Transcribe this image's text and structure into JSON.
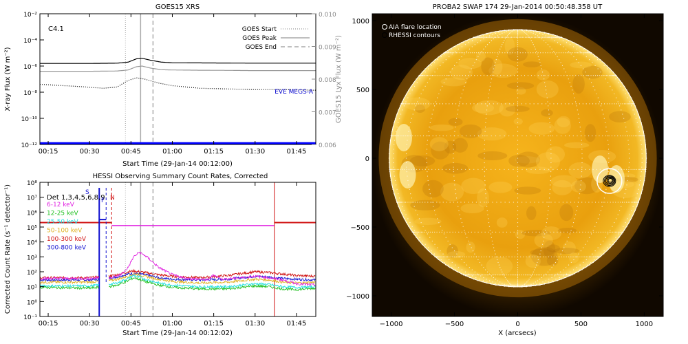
{
  "goes_panel": {
    "title": "GOES15 XRS",
    "class_label": "C4.1",
    "ylabel_left": "X-ray Flux (W m⁻²)",
    "ylabel_right": "GOES15 Lyx Flux (W m⁻²)",
    "xlabel": "Start Time (29-Jan-14 00:12:00)",
    "eve_label": "EVE MEGS-A",
    "legend": [
      {
        "label": "GOES Start",
        "style": "dotted",
        "color": "#aaaaaa"
      },
      {
        "label": "GOES Peak",
        "style": "solid",
        "color": "#aaaaaa"
      },
      {
        "label": "GOES End",
        "style": "dashed",
        "color": "#aaaaaa"
      }
    ]
  },
  "hessi_panel": {
    "title": "HESSI Observing Summary Count Rates, Corrected",
    "ylabel": "Corrected Count Rate (s⁻¹ detector⁻¹)",
    "xlabel": "Start Time (29-Jan-14 00:12:02)",
    "detectors": "Det 1,3,4,5,6,8,9",
    "flag_labels": [
      "S",
      "F",
      "N"
    ],
    "legend": [
      {
        "label": "6-12 keV",
        "color": "#e020e0"
      },
      {
        "label": "12-25 keV",
        "color": "#20c020"
      },
      {
        "label": "25-50 keV",
        "color": "#20e0e0"
      },
      {
        "label": "50-100 keV",
        "color": "#e0b020"
      },
      {
        "label": "100-300 keV",
        "color": "#d01010"
      },
      {
        "label": "300-800 keV",
        "color": "#1010d0"
      }
    ]
  },
  "sun_panel": {
    "title": "PROBA2 SWAP 174 29-Jan-2014 00:50:48.358 UT",
    "xlabel": "X (arcsecs)",
    "legend": [
      "AIA flare location",
      "RHESSI contours"
    ]
  },
  "chart_data": [
    {
      "type": "line",
      "title": "GOES15 XRS",
      "x_tick_labels": [
        "00:15",
        "00:30",
        "00:45",
        "01:00",
        "01:15",
        "01:30",
        "01:45"
      ],
      "x_tick_minutes": [
        15,
        30,
        45,
        60,
        75,
        90,
        105
      ],
      "xlim_minutes": [
        12,
        112
      ],
      "y_scale": "log",
      "ylim": [
        1e-12,
        0.01
      ],
      "y_tick_labels": [
        "10⁻¹²",
        "10⁻¹⁰",
        "10⁻⁸",
        "10⁻⁶",
        "10⁻⁴",
        "10⁻²"
      ],
      "y_tick_exponents": [
        -12,
        -10,
        -8,
        -6,
        -4,
        -2
      ],
      "y2lim": [
        0.006,
        0.01
      ],
      "y2_tick_labels": [
        "0.006",
        "0.007",
        "0.008",
        "0.009",
        "0.010"
      ],
      "vlines_minutes": {
        "start": 43,
        "peak": 48.5,
        "end": 53
      },
      "series": [
        {
          "color": "#000000",
          "style": "solid",
          "x": [
            12,
            30,
            40,
            44,
            47,
            49,
            52,
            56,
            60,
            70,
            80,
            90,
            100,
            112
          ],
          "log10y": [
            -5.8,
            -5.8,
            -5.78,
            -5.7,
            -5.45,
            -5.4,
            -5.55,
            -5.7,
            -5.75,
            -5.76,
            -5.77,
            -5.78,
            -5.78,
            -5.78
          ]
        },
        {
          "color": "#999999",
          "style": "solid",
          "x": [
            12,
            30,
            40,
            44,
            47,
            49,
            52,
            56,
            60,
            70,
            80,
            90,
            100,
            112
          ],
          "log10y": [
            -6.4,
            -6.4,
            -6.38,
            -6.3,
            -6.05,
            -6.0,
            -6.15,
            -6.28,
            -6.3,
            -6.32,
            -6.33,
            -6.35,
            -6.35,
            -6.35
          ]
        },
        {
          "color": "#000000",
          "style": "dotted",
          "x": [
            12,
            25,
            35,
            40,
            44,
            47,
            50,
            55,
            60,
            70,
            80,
            90,
            100,
            112
          ],
          "log10y": [
            -7.4,
            -7.55,
            -7.7,
            -7.6,
            -7.1,
            -6.9,
            -7.0,
            -7.3,
            -7.5,
            -7.7,
            -7.75,
            -7.8,
            -7.8,
            -7.85
          ]
        },
        {
          "color": "#0000ff",
          "style": "solid",
          "x": [
            12,
            112
          ],
          "log10y": [
            -11.9,
            -11.9
          ]
        }
      ]
    },
    {
      "type": "line",
      "title": "HESSI Observing Summary Count Rates, Corrected",
      "x_tick_labels": [
        "00:15",
        "00:30",
        "00:45",
        "01:00",
        "01:15",
        "01:30",
        "01:45"
      ],
      "x_tick_minutes": [
        15,
        30,
        45,
        60,
        75,
        90,
        105
      ],
      "xlim_minutes": [
        12,
        112
      ],
      "y_scale": "log",
      "ylim": [
        0.1,
        100000000.0
      ],
      "y_tick_labels": [
        "10⁻¹",
        "10⁰",
        "10¹",
        "10²",
        "10³",
        "10⁴",
        "10⁵",
        "10⁶",
        "10⁷",
        "10⁸"
      ],
      "y_tick_exponents": [
        -1,
        0,
        1,
        2,
        3,
        4,
        5,
        6,
        7,
        8
      ],
      "vlines_minutes": {
        "start": 43,
        "peak": 48.5,
        "end": 53
      },
      "series": [
        {
          "name": "6-12 keV",
          "color": "#e020e0",
          "x": [
            12,
            30,
            33,
            37,
            40,
            42,
            44,
            46,
            48,
            50,
            52,
            55,
            58,
            60,
            65,
            70,
            73,
            75,
            78,
            85,
            90,
            95,
            100,
            105,
            112
          ],
          "log10y": [
            1.55,
            1.55,
            1.6,
            1.6,
            1.7,
            1.9,
            2.3,
            3.0,
            3.3,
            3.1,
            2.8,
            2.3,
            2.0,
            1.8,
            1.55,
            1.5,
            1.45,
            1.8,
            1.5,
            1.6,
            1.7,
            1.6,
            1.45,
            1.2,
            1.1
          ]
        },
        {
          "name": "12-25 keV",
          "color": "#20c020",
          "x": [
            12,
            30,
            33,
            37,
            40,
            44,
            46,
            48,
            50,
            55,
            60,
            70,
            80,
            90,
            95,
            100,
            105,
            112
          ],
          "log10y": [
            0.95,
            0.9,
            0.95,
            1.0,
            1.1,
            1.4,
            1.6,
            1.5,
            1.35,
            1.1,
            0.95,
            0.85,
            0.85,
            1.05,
            1.0,
            0.85,
            0.8,
            0.9
          ]
        },
        {
          "name": "25-50 keV",
          "color": "#20e0e0",
          "x": [
            12,
            30,
            33,
            37,
            40,
            44,
            46,
            48,
            50,
            55,
            60,
            70,
            80,
            90,
            95,
            100,
            105,
            112
          ],
          "log10y": [
            1.05,
            1.05,
            1.1,
            1.15,
            1.25,
            1.55,
            1.75,
            1.65,
            1.5,
            1.25,
            1.1,
            1.0,
            1.0,
            1.2,
            1.15,
            1.0,
            0.95,
            1.0
          ]
        },
        {
          "name": "50-100 keV",
          "color": "#e0b020",
          "x": [
            12,
            30,
            33,
            37,
            40,
            44,
            46,
            48,
            50,
            55,
            60,
            70,
            80,
            90,
            95,
            100,
            105,
            112
          ],
          "log10y": [
            1.3,
            1.3,
            1.35,
            1.4,
            1.5,
            1.7,
            1.85,
            1.8,
            1.7,
            1.5,
            1.35,
            1.25,
            1.3,
            1.5,
            1.45,
            1.3,
            1.25,
            1.3
          ]
        },
        {
          "name": "100-300 keV",
          "color": "#d01010",
          "x": [
            12,
            30,
            33,
            37,
            40,
            44,
            46,
            48,
            50,
            55,
            60,
            70,
            80,
            90,
            95,
            100,
            105,
            112
          ],
          "log10y": [
            1.6,
            1.6,
            1.65,
            1.7,
            1.8,
            2.0,
            2.05,
            2.0,
            1.95,
            1.8,
            1.7,
            1.6,
            1.75,
            2.0,
            1.95,
            1.85,
            1.75,
            1.7
          ]
        },
        {
          "name": "300-800 keV",
          "color": "#1010d0",
          "x": [
            12,
            30,
            33,
            37,
            40,
            44,
            46,
            48,
            50,
            55,
            60,
            70,
            80,
            90,
            95,
            100,
            105,
            112
          ],
          "log10y": [
            1.45,
            1.45,
            1.5,
            1.55,
            1.65,
            1.85,
            1.9,
            1.85,
            1.8,
            1.6,
            1.5,
            1.45,
            1.5,
            1.7,
            1.65,
            1.55,
            1.5,
            1.45
          ]
        }
      ]
    },
    {
      "type": "heatmap",
      "title": "PROBA2 SWAP 174 29-Jan-2014 00:50:48.358 UT",
      "xlabel": "X (arcsecs)",
      "xlim": [
        -1150,
        1150
      ],
      "ylim": [
        -1150,
        1050
      ],
      "x_tick_labels": [
        "−1000",
        "−500",
        "0",
        "500",
        "1000"
      ],
      "x_tick_values": [
        -1000,
        -500,
        0,
        500,
        1000
      ],
      "y_tick_labels": [
        "−1000",
        "−500",
        "0",
        "500",
        "1000"
      ],
      "y_tick_values": [
        -1000,
        -500,
        0,
        500,
        1000
      ],
      "solar_radius_arcsec": 975,
      "flare_location_arcsec": [
        725,
        -165
      ]
    }
  ]
}
